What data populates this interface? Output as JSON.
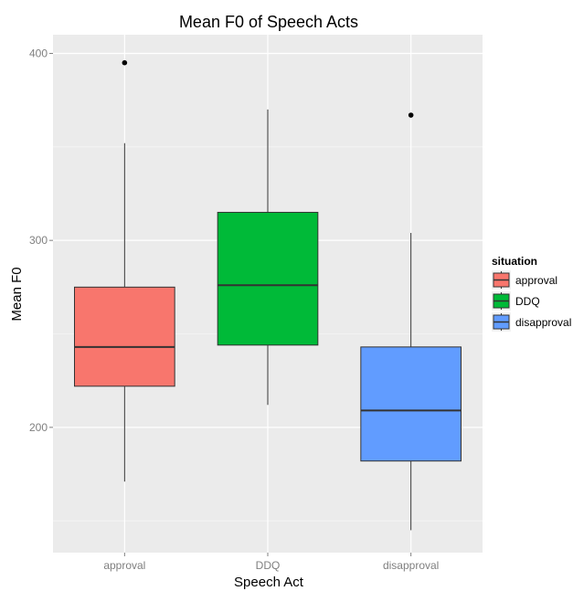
{
  "chart_data": {
    "type": "boxplot",
    "title": "Mean F0 of Speech Acts",
    "xlabel": "Speech Act",
    "ylabel": "Mean F0",
    "categories": [
      "approval",
      "DDQ",
      "disapproval"
    ],
    "ylim": [
      133,
      410
    ],
    "yticks": [
      200,
      300,
      400
    ],
    "ygrid_minor": [
      150,
      250,
      350
    ],
    "grid": true,
    "background": "#ebebeb",
    "legend": {
      "title": "situation",
      "position": "right",
      "entries": [
        "approval",
        "DDQ",
        "disapproval"
      ]
    },
    "series": [
      {
        "name": "approval",
        "color": "#f8766d",
        "whisker_low": 171,
        "q1": 222,
        "median": 243,
        "q3": 275,
        "whisker_high": 352,
        "outliers": [
          395
        ]
      },
      {
        "name": "DDQ",
        "color": "#00ba38",
        "whisker_low": 212,
        "q1": 244,
        "median": 276,
        "q3": 315,
        "whisker_high": 370,
        "outliers": []
      },
      {
        "name": "disapproval",
        "color": "#619cff",
        "whisker_low": 145,
        "q1": 182,
        "median": 209,
        "q3": 243,
        "whisker_high": 304,
        "outliers": [
          367
        ]
      }
    ]
  }
}
